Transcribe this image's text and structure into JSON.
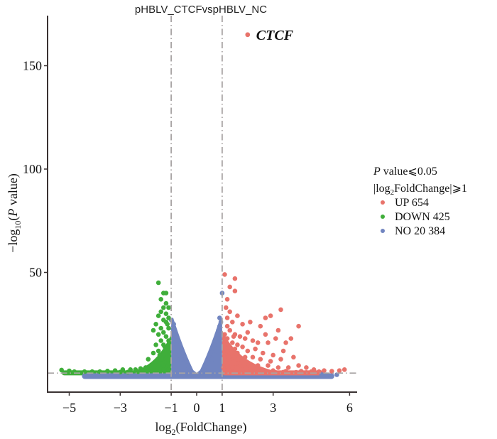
{
  "chart_data": {
    "type": "scatter",
    "title": "pHBLV_CTCFvspHBLV_NC",
    "xlabel": "log2(FoldChange)",
    "ylabel": "-log10(P value)",
    "xlim": [
      -5.8,
      6.3
    ],
    "ylim": [
      -8,
      168
    ],
    "x_ticks": [
      -5,
      -3,
      -1,
      0,
      1,
      3,
      6
    ],
    "x_tick_labels": [
      "−5",
      "−3",
      "−1",
      "0",
      "1",
      "3",
      "6"
    ],
    "y_ticks": [
      50,
      100,
      150
    ],
    "y_tick_labels": [
      "50",
      "100",
      "150"
    ],
    "grid": false,
    "thresholds": {
      "fold_change": [
        -1,
        1
      ],
      "p_value_line": 1.3
    },
    "legend": {
      "placement": "right",
      "title_line1_italic": "P",
      "title_line1_rest": " value⩽0.05",
      "title_line2_pre": "|log",
      "title_line2_sub": "2",
      "title_line2_post": "FoldChange|⩾1",
      "entries": [
        {
          "name": "UP",
          "count": "654",
          "label": "UP 654",
          "color": "#e8736b"
        },
        {
          "name": "DOWN",
          "count": "425",
          "label": "DOWN 425",
          "color": "#3fae3a"
        },
        {
          "name": "NO",
          "count": "20 384",
          "label": "NO 20 384",
          "color": "#7185c0"
        }
      ]
    },
    "annotations": [
      {
        "label": "CTCF",
        "x": 2.0,
        "y": 165,
        "group": "UP"
      }
    ],
    "series": [
      {
        "name": "UP",
        "color": "#e8736b",
        "points": [
          [
            2.0,
            165
          ],
          [
            1.1,
            49
          ],
          [
            1.5,
            47
          ],
          [
            1.3,
            43
          ],
          [
            1.5,
            41
          ],
          [
            1.2,
            37
          ],
          [
            1.15,
            33
          ],
          [
            1.3,
            31
          ],
          [
            1.6,
            29
          ],
          [
            3.3,
            32
          ],
          [
            2.7,
            28
          ],
          [
            2.9,
            29
          ],
          [
            1.2,
            28
          ],
          [
            1.4,
            26
          ],
          [
            1.8,
            25
          ],
          [
            2.1,
            26
          ],
          [
            2.5,
            24
          ],
          [
            3.2,
            22
          ],
          [
            3.7,
            18
          ],
          [
            4.0,
            24
          ],
          [
            1.2,
            24
          ],
          [
            1.3,
            22
          ],
          [
            1.5,
            20
          ],
          [
            1.7,
            19
          ],
          [
            1.9,
            18
          ],
          [
            2.2,
            17
          ],
          [
            2.4,
            16
          ],
          [
            2.8,
            16
          ],
          [
            3.5,
            16
          ],
          [
            1.2,
            18
          ],
          [
            1.4,
            16
          ],
          [
            1.6,
            15
          ],
          [
            1.1,
            20
          ],
          [
            1.3,
            14
          ],
          [
            1.5,
            13
          ],
          [
            1.8,
            14
          ],
          [
            2.0,
            12
          ],
          [
            2.3,
            13
          ],
          [
            2.6,
            11
          ],
          [
            3.0,
            10
          ],
          [
            3.4,
            12
          ],
          [
            1.2,
            12
          ],
          [
            1.4,
            10
          ],
          [
            1.6,
            11
          ],
          [
            1.9,
            9
          ],
          [
            2.2,
            9
          ],
          [
            2.5,
            8
          ],
          [
            2.9,
            7
          ],
          [
            3.3,
            8
          ],
          [
            3.8,
            9
          ],
          [
            1.1,
            9
          ],
          [
            1.3,
            8
          ],
          [
            1.5,
            7
          ],
          [
            1.7,
            6
          ],
          [
            2.0,
            6
          ],
          [
            2.4,
            5
          ],
          [
            2.8,
            5
          ],
          [
            3.2,
            4
          ],
          [
            3.6,
            4
          ],
          [
            4.0,
            5
          ],
          [
            4.3,
            4
          ],
          [
            4.6,
            3
          ],
          [
            1.2,
            5
          ],
          [
            1.4,
            4
          ],
          [
            1.6,
            3.5
          ],
          [
            1.8,
            3
          ],
          [
            2.1,
            3
          ],
          [
            2.6,
            2.5
          ],
          [
            3.0,
            2.5
          ],
          [
            3.5,
            2.2
          ],
          [
            4.1,
            2.2
          ],
          [
            4.5,
            2
          ],
          [
            4.8,
            2
          ],
          [
            5.0,
            2.5
          ],
          [
            5.3,
            2.2
          ],
          [
            5.6,
            2.5
          ],
          [
            5.8,
            3
          ],
          [
            1.1,
            3
          ],
          [
            1.3,
            2.5
          ],
          [
            1.5,
            2
          ],
          [
            1.7,
            2
          ],
          [
            2.0,
            1.8
          ],
          [
            2.3,
            1.8
          ],
          [
            2.7,
            1.6
          ],
          [
            3.1,
            1.6
          ],
          [
            3.4,
            1.8
          ],
          [
            3.9,
            1.7
          ],
          [
            4.3,
            1.6
          ],
          [
            1.1,
            15
          ],
          [
            1.2,
            6
          ],
          [
            1.35,
            11
          ],
          [
            1.45,
            19
          ],
          [
            1.25,
            9
          ],
          [
            1.55,
            6
          ],
          [
            1.05,
            4
          ],
          [
            1.15,
            13
          ],
          [
            1.65,
            8
          ],
          [
            2.7,
            20
          ],
          [
            3.1,
            18
          ],
          [
            2.0,
            21
          ]
        ]
      },
      {
        "name": "DOWN",
        "color": "#3fae3a",
        "points": [
          [
            -1.5,
            45
          ],
          [
            -1.3,
            40
          ],
          [
            -1.2,
            40
          ],
          [
            -1.4,
            37
          ],
          [
            -1.2,
            35
          ],
          [
            -1.3,
            33
          ],
          [
            -1.1,
            33
          ],
          [
            -1.4,
            31
          ],
          [
            -1.2,
            30
          ],
          [
            -1.1,
            28
          ],
          [
            -1.5,
            29
          ],
          [
            -1.3,
            27
          ],
          [
            -1.6,
            25
          ],
          [
            -1.2,
            26
          ],
          [
            -1.4,
            23
          ],
          [
            -1.1,
            23
          ],
          [
            -1.3,
            21
          ],
          [
            -1.5,
            20
          ],
          [
            -1.2,
            19
          ],
          [
            -1.7,
            22
          ],
          [
            -1.4,
            17
          ],
          [
            -1.1,
            17
          ],
          [
            -1.3,
            15
          ],
          [
            -1.6,
            15
          ],
          [
            -1.2,
            13
          ],
          [
            -1.5,
            12
          ],
          [
            -1.1,
            12
          ],
          [
            -1.3,
            10
          ],
          [
            -1.7,
            11
          ],
          [
            -1.2,
            8
          ],
          [
            -1.4,
            8
          ],
          [
            -1.6,
            7
          ],
          [
            -1.9,
            8
          ],
          [
            -1.1,
            6
          ],
          [
            -1.3,
            5
          ],
          [
            -1.5,
            5
          ],
          [
            -1.8,
            5
          ],
          [
            -2.0,
            4
          ],
          [
            -2.2,
            3.5
          ],
          [
            -2.4,
            3
          ],
          [
            -2.6,
            3
          ],
          [
            -2.9,
            3
          ],
          [
            -3.2,
            2.5
          ],
          [
            -3.5,
            2.3
          ],
          [
            -3.8,
            2
          ],
          [
            -4.1,
            2
          ],
          [
            -4.4,
            2
          ],
          [
            -4.8,
            2
          ],
          [
            -5.0,
            2.4
          ],
          [
            -5.3,
            2.8
          ],
          [
            -1.1,
            3
          ],
          [
            -1.3,
            3
          ],
          [
            -1.6,
            2.5
          ],
          [
            -1.9,
            2.2
          ],
          [
            -2.3,
            2
          ],
          [
            -2.7,
            1.8
          ],
          [
            -3.0,
            1.8
          ],
          [
            -1.15,
            25
          ],
          [
            -1.25,
            14
          ],
          [
            -1.45,
            10
          ]
        ]
      },
      {
        "name": "NO",
        "color": "#7185c0",
        "points": [
          [
            1.0,
            40
          ],
          [
            -1.0,
            27
          ],
          [
            -0.9,
            25
          ],
          [
            -0.85,
            21
          ],
          [
            -0.8,
            19
          ],
          [
            -0.75,
            17
          ],
          [
            -0.7,
            15
          ],
          [
            -0.6,
            13
          ],
          [
            -0.55,
            11
          ],
          [
            -0.5,
            9
          ],
          [
            -0.45,
            8
          ],
          [
            -0.4,
            7
          ],
          [
            -0.35,
            5
          ],
          [
            -0.3,
            4
          ],
          [
            -0.25,
            3
          ],
          [
            -0.2,
            2
          ],
          [
            -0.15,
            1.5
          ],
          [
            -0.1,
            1
          ],
          [
            0.1,
            1
          ],
          [
            0.15,
            1.5
          ],
          [
            0.2,
            2
          ],
          [
            0.25,
            3
          ],
          [
            0.3,
            4
          ],
          [
            0.35,
            5
          ],
          [
            0.4,
            6
          ],
          [
            0.45,
            8
          ],
          [
            0.5,
            9
          ],
          [
            0.55,
            11
          ],
          [
            0.6,
            13
          ],
          [
            0.7,
            15
          ],
          [
            0.75,
            17
          ],
          [
            0.8,
            20
          ],
          [
            0.85,
            22
          ],
          [
            0.9,
            24
          ],
          [
            0.95,
            26
          ],
          [
            0.9,
            28
          ],
          [
            -0.95,
            23
          ],
          [
            -0.9,
            20
          ],
          [
            0.85,
            18
          ],
          [
            -0.8,
            15
          ],
          [
            0.6,
            8
          ],
          [
            -0.6,
            8
          ],
          [
            0.7,
            10
          ],
          [
            -0.7,
            10
          ],
          [
            5.1,
            0.5
          ],
          [
            5.5,
            0.5
          ],
          [
            4.9,
            0.8
          ]
        ]
      }
    ],
    "baseline_bands": [
      {
        "group": "DOWN",
        "x_from": -5.3,
        "x_to": -1.0
      },
      {
        "group": "NO",
        "x_from": -4.5,
        "x_to": 5.4
      },
      {
        "group": "UP",
        "x_from": 1.0,
        "x_to": 5.0
      }
    ]
  }
}
